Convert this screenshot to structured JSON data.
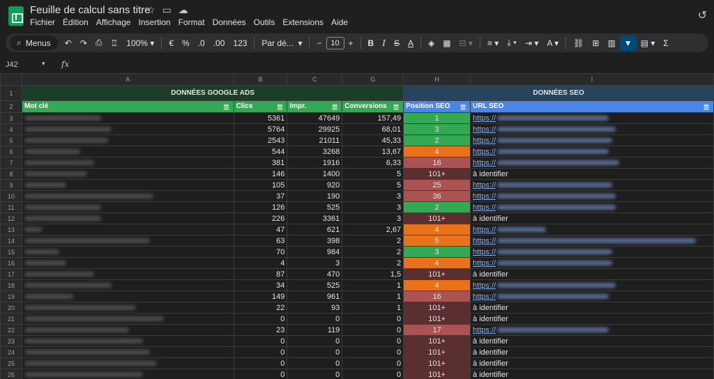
{
  "header": {
    "title": "Feuille de calcul sans titre",
    "menus": [
      "Fichier",
      "Édition",
      "Affichage",
      "Insertion",
      "Format",
      "Données",
      "Outils",
      "Extensions",
      "Aide"
    ]
  },
  "toolbar": {
    "search_label": "Menus",
    "zoom": "100%",
    "currency": "€",
    "percent": "%",
    "dec_less": ".0",
    "dec_more": ".00",
    "number_format": "123",
    "font": "Par dé...",
    "font_size": "10"
  },
  "formula_bar": {
    "cell_ref": "J42",
    "fx": "fx"
  },
  "columns": [
    "A",
    "B",
    "C",
    "G",
    "H",
    "I"
  ],
  "sections": {
    "ads": "DONNÉES GOOGLE ADS",
    "seo": "DONNÉES SEO"
  },
  "headers": {
    "keyword": "Mot clé",
    "clicks": "Clics",
    "impr": "Impr.",
    "conversions": "Conversions",
    "position": "Position SEO",
    "url": "URL SEO"
  },
  "colors": {
    "green": "#34a853",
    "orange": "#e8711c",
    "light_red": "#a95452",
    "dark_red": "#5a2f30",
    "seo_header": "#4a86e8",
    "ads_header": "#34a853"
  },
  "rows": [
    {
      "n": "3",
      "clics": "5361",
      "impr": "47649",
      "conv": "157,49",
      "pos": "1",
      "cls": "green",
      "url": "https://",
      "kw_w": 110,
      "url_w": 160
    },
    {
      "n": "4",
      "clics": "5764",
      "impr": "29925",
      "conv": "68,01",
      "pos": "3",
      "cls": "green",
      "url": "https://",
      "kw_w": 125,
      "url_w": 170
    },
    {
      "n": "5",
      "clics": "2543",
      "impr": "21011",
      "conv": "45,33",
      "pos": "2",
      "cls": "green",
      "url": "https://",
      "kw_w": 120,
      "url_w": 165
    },
    {
      "n": "6",
      "clics": "544",
      "impr": "3268",
      "conv": "13,67",
      "pos": "4",
      "cls": "orange",
      "url": "https://",
      "kw_w": 80,
      "url_w": 160
    },
    {
      "n": "7",
      "clics": "381",
      "impr": "1916",
      "conv": "6,33",
      "pos": "16",
      "cls": "light_red",
      "url": "https://",
      "kw_w": 100,
      "url_w": 175
    },
    {
      "n": "8",
      "clics": "146",
      "impr": "1400",
      "conv": "5",
      "pos": "101+",
      "cls": "dark_red",
      "url": "à identifier",
      "kw_w": 90,
      "url_w": 0
    },
    {
      "n": "9",
      "clics": "105",
      "impr": "920",
      "conv": "5",
      "pos": "25",
      "cls": "light_red",
      "url": "https://",
      "kw_w": 60,
      "url_w": 165
    },
    {
      "n": "10",
      "clics": "37",
      "impr": "190",
      "conv": "3",
      "pos": "36",
      "cls": "light_red",
      "url": "https://",
      "kw_w": 185,
      "url_w": 170
    },
    {
      "n": "11",
      "clics": "126",
      "impr": "525",
      "conv": "3",
      "pos": "2",
      "cls": "green",
      "url": "https://",
      "kw_w": 110,
      "url_w": 170
    },
    {
      "n": "12",
      "clics": "226",
      "impr": "3361",
      "conv": "3",
      "pos": "101+",
      "cls": "dark_red",
      "url": "à identifier",
      "kw_w": 110,
      "url_w": 0
    },
    {
      "n": "13",
      "clics": "47",
      "impr": "621",
      "conv": "2,67",
      "pos": "4",
      "cls": "orange",
      "url": "https://",
      "kw_w": 25,
      "url_w": 70
    },
    {
      "n": "14",
      "clics": "63",
      "impr": "398",
      "conv": "2",
      "pos": "5",
      "cls": "orange",
      "url": "https://",
      "kw_w": 180,
      "url_w": 285
    },
    {
      "n": "15",
      "clics": "70",
      "impr": "984",
      "conv": "2",
      "pos": "3",
      "cls": "green",
      "url": "https://",
      "kw_w": 50,
      "url_w": 165
    },
    {
      "n": "16",
      "clics": "4",
      "impr": "3",
      "conv": "2",
      "pos": "4",
      "cls": "orange",
      "url": "https://",
      "kw_w": 60,
      "url_w": 165
    },
    {
      "n": "17",
      "clics": "87",
      "impr": "470",
      "conv": "1,5",
      "pos": "101+",
      "cls": "dark_red",
      "url": "à identifier",
      "kw_w": 100,
      "url_w": 0
    },
    {
      "n": "18",
      "clics": "34",
      "impr": "525",
      "conv": "1",
      "pos": "4",
      "cls": "orange",
      "url": "https://",
      "kw_w": 125,
      "url_w": 170
    },
    {
      "n": "19",
      "clics": "149",
      "impr": "961",
      "conv": "1",
      "pos": "16",
      "cls": "light_red",
      "url": "https://",
      "kw_w": 70,
      "url_w": 160
    },
    {
      "n": "20",
      "clics": "22",
      "impr": "93",
      "conv": "1",
      "pos": "101+",
      "cls": "dark_red",
      "url": "à identifier",
      "kw_w": 160,
      "url_w": 0
    },
    {
      "n": "21",
      "clics": "0",
      "impr": "0",
      "conv": "0",
      "pos": "101+",
      "cls": "dark_red",
      "url": "à identifier",
      "kw_w": 200,
      "url_w": 0
    },
    {
      "n": "22",
      "clics": "23",
      "impr": "119",
      "conv": "0",
      "pos": "17",
      "cls": "light_red",
      "url": "https://",
      "kw_w": 150,
      "url_w": 160
    },
    {
      "n": "23",
      "clics": "0",
      "impr": "0",
      "conv": "0",
      "pos": "101+",
      "cls": "dark_red",
      "url": "à identifier",
      "kw_w": 170,
      "url_w": 0
    },
    {
      "n": "24",
      "clics": "0",
      "impr": "0",
      "conv": "0",
      "pos": "101+",
      "cls": "dark_red",
      "url": "à identifier",
      "kw_w": 180,
      "url_w": 0
    },
    {
      "n": "25",
      "clics": "0",
      "impr": "0",
      "conv": "0",
      "pos": "101+",
      "cls": "dark_red",
      "url": "à identifier",
      "kw_w": 190,
      "url_w": 0
    },
    {
      "n": "26",
      "clics": "0",
      "impr": "0",
      "conv": "0",
      "pos": "101+",
      "cls": "dark_red",
      "url": "à identifier",
      "kw_w": 170,
      "url_w": 0
    }
  ]
}
